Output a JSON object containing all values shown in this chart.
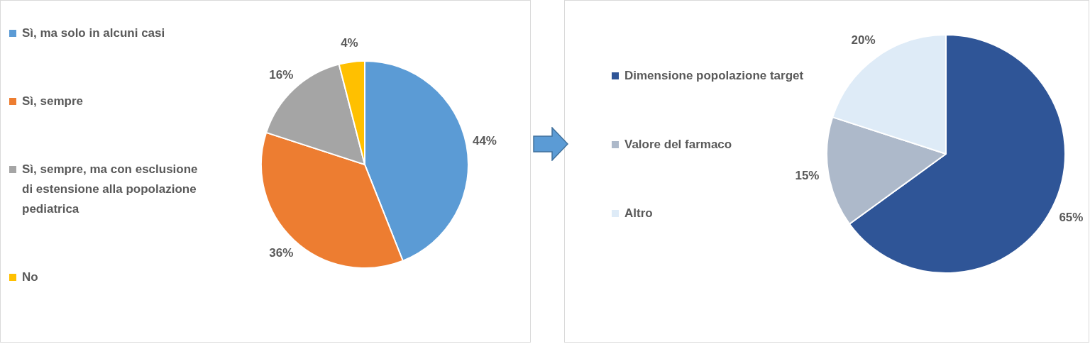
{
  "chart_data": [
    {
      "type": "pie",
      "categories": [
        "Sì, ma solo in alcuni casi",
        "Sì, sempre",
        "Sì, sempre, ma con esclusione di estensione alla popolazione pediatrica",
        "No"
      ],
      "values": [
        44,
        36,
        16,
        4
      ],
      "value_labels": [
        "44%",
        "36%",
        "16%",
        "4%"
      ],
      "colors": [
        "#5b9bd5",
        "#ed7d31",
        "#a5a5a5",
        "#ffc000"
      ],
      "legend": "left"
    },
    {
      "type": "pie",
      "categories": [
        "Dimensione popolazione target",
        "Valore del farmaco",
        "Altro"
      ],
      "values": [
        65,
        15,
        20
      ],
      "value_labels": [
        "65%",
        "15%",
        "20%"
      ],
      "colors": [
        "#2f5597",
        "#adb9ca",
        "#deebf7"
      ],
      "legend": "left"
    }
  ]
}
